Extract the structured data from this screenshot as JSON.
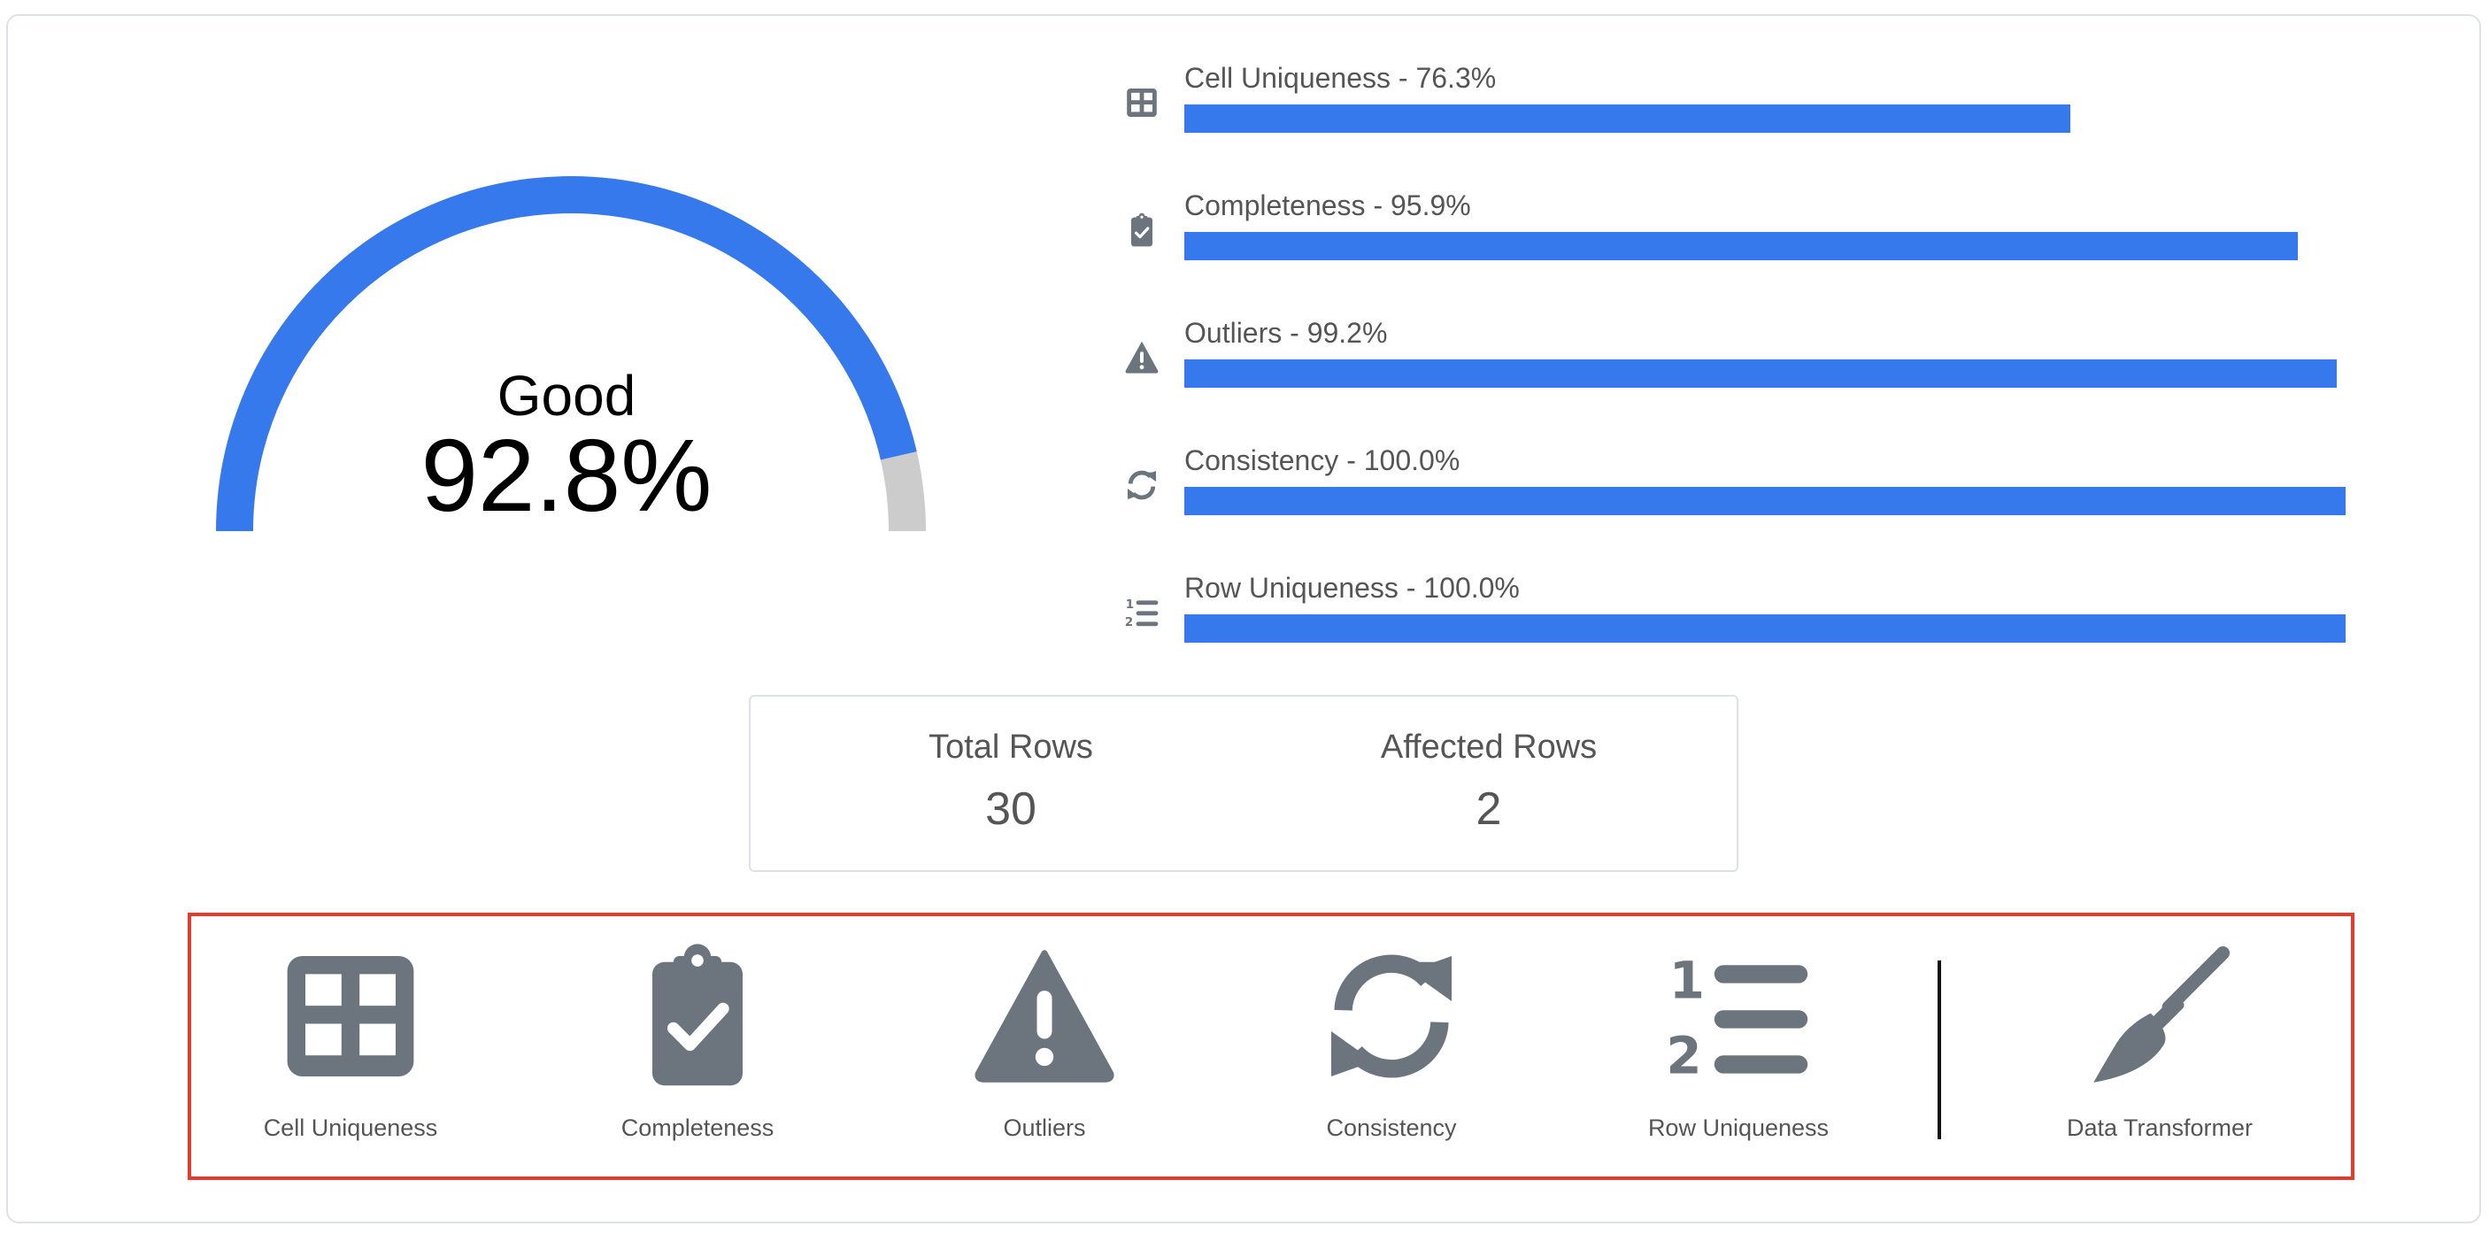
{
  "gauge": {
    "status": "Good",
    "value_text": "92.8%",
    "value": 92.8
  },
  "metrics": [
    {
      "label": "Cell Uniqueness - 76.3%",
      "value": 76.3,
      "icon": "table-icon"
    },
    {
      "label": "Completeness - 95.9%",
      "value": 95.9,
      "icon": "clipboard-check-icon"
    },
    {
      "label": "Outliers - 99.2%",
      "value": 99.2,
      "icon": "warning-icon"
    },
    {
      "label": "Consistency - 100.0%",
      "value": 100.0,
      "icon": "sync-icon"
    },
    {
      "label": "Row Uniqueness - 100.0%",
      "value": 100.0,
      "icon": "list-ol-icon"
    }
  ],
  "stats": {
    "total_rows_label": "Total Rows",
    "total_rows": "30",
    "affected_rows_label": "Affected Rows",
    "affected_rows": "2"
  },
  "tools": [
    {
      "label": "Cell Uniqueness",
      "icon": "table-icon"
    },
    {
      "label": "Completeness",
      "icon": "clipboard-check-icon"
    },
    {
      "label": "Outliers",
      "icon": "warning-icon"
    },
    {
      "label": "Consistency",
      "icon": "sync-icon"
    },
    {
      "label": "Row Uniqueness",
      "icon": "list-ol-icon"
    },
    {
      "label": "Data Transformer",
      "icon": "broom-icon"
    }
  ],
  "colors": {
    "accent": "#3679ec",
    "gauge_remaining": "#cccccc",
    "icon": "#6c757d",
    "highlight_border": "#e53b2c"
  }
}
